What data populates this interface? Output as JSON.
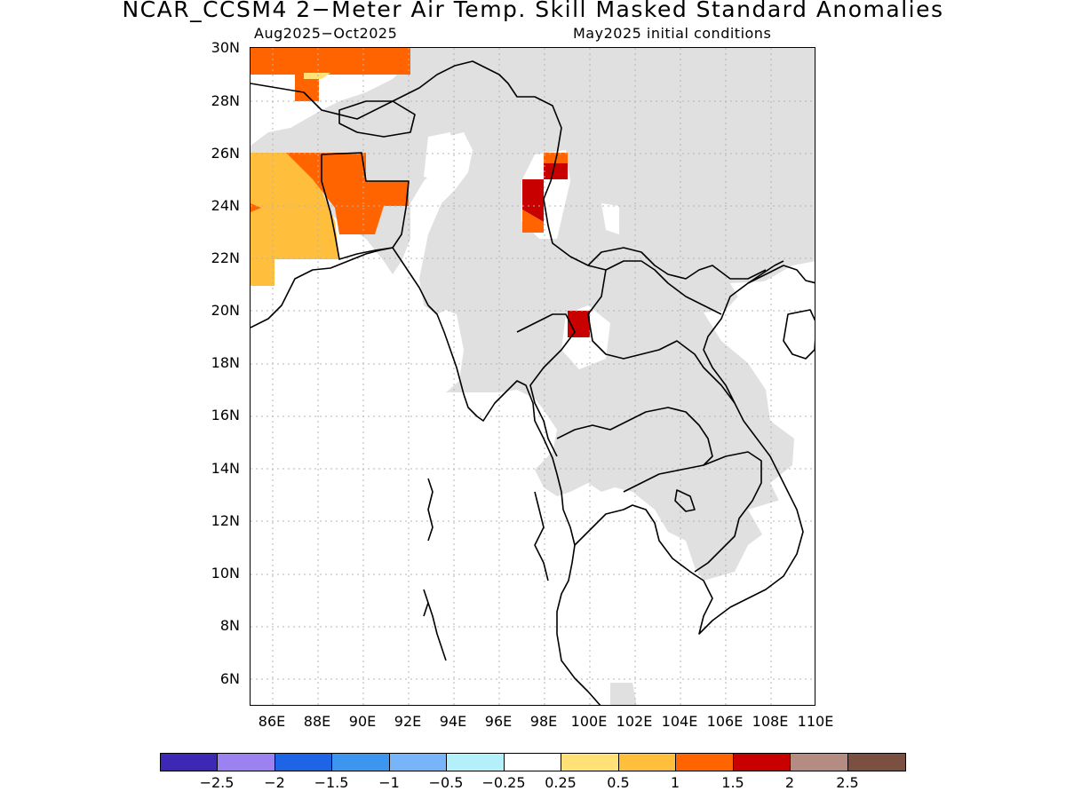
{
  "title": "NCAR_CCSM4 2−Meter Air Temp. Skill Masked Standard Anomalies",
  "subtitle_left": "Aug2025−Oct2025",
  "subtitle_right": "May2025 initial conditions",
  "lat_labels": [
    "30N",
    "28N",
    "26N",
    "24N",
    "22N",
    "20N",
    "18N",
    "16N",
    "14N",
    "12N",
    "10N",
    "8N",
    "6N"
  ],
  "lon_labels": [
    "86E",
    "88E",
    "90E",
    "92E",
    "94E",
    "96E",
    "98E",
    "100E",
    "102E",
    "104E",
    "106E",
    "108E",
    "110E"
  ],
  "colorbar": {
    "colors": [
      "#3c28b4",
      "#9b82f0",
      "#1e64e6",
      "#3c96f0",
      "#78b4fa",
      "#b4f0fa",
      "#ffffff",
      "#ffe178",
      "#ffbe3c",
      "#ff6400",
      "#c80000",
      "#b48c82",
      "#7b5041"
    ],
    "labels": [
      "−2.5",
      "−2",
      "−1.5",
      "−1",
      "−0.5",
      "−0.25",
      "0.25",
      "0.5",
      "1",
      "1.5",
      "2",
      "2.5"
    ]
  },
  "map_colors": {
    "land_grey": "#e0e0e0",
    "coast": "#000000"
  }
}
